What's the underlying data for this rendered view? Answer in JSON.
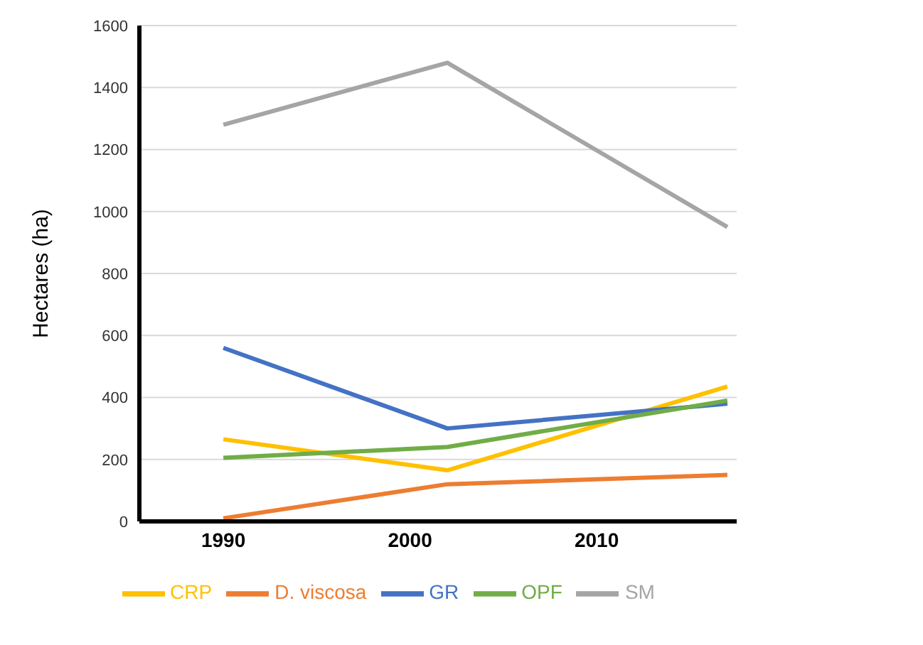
{
  "chart_data": {
    "type": "line",
    "ylabel": "Hectares (ha)",
    "x": [
      1990,
      2002,
      2017
    ],
    "series": [
      {
        "name": "D. viscosa",
        "color": "#ed7d31",
        "values": [
          10,
          120,
          150
        ]
      },
      {
        "name": "SM",
        "color": "#a5a5a5",
        "values": [
          1280,
          1480,
          950
        ]
      },
      {
        "name": "CRP",
        "color": "#ffc000",
        "values": [
          265,
          165,
          435
        ]
      },
      {
        "name": "GR",
        "color": "#4472c4",
        "values": [
          560,
          300,
          380
        ]
      },
      {
        "name": "OPF",
        "color": "#70ad47",
        "values": [
          205,
          240,
          390
        ]
      }
    ],
    "xlim": [
      1985.5,
      2017.5
    ],
    "xticks": [
      1990,
      2000,
      2010
    ],
    "ylim": [
      0,
      1600
    ],
    "yticks": [
      0,
      200,
      400,
      600,
      800,
      1000,
      1200,
      1400,
      1600
    ],
    "grid": "y",
    "legend": "bottom",
    "marker": "none",
    "line_style": "solid"
  }
}
